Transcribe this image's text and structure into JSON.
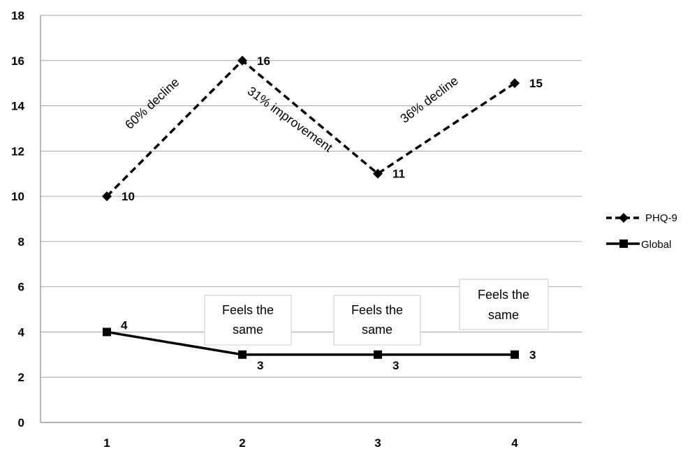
{
  "chart_data": {
    "type": "line",
    "categories": [
      "1",
      "2",
      "3",
      "4"
    ],
    "y_ticks": [
      "0",
      "2",
      "4",
      "6",
      "8",
      "10",
      "12",
      "14",
      "16",
      "18"
    ],
    "ylim": [
      0,
      18
    ],
    "grid": true,
    "legend_position": "right",
    "series": [
      {
        "name": "PHQ-9",
        "values": [
          10,
          16,
          11,
          15
        ],
        "labels": [
          "10",
          "16",
          "11",
          "15"
        ],
        "style": "dashed",
        "marker": "diamond",
        "color": "#000000"
      },
      {
        "name": "Global",
        "values": [
          4,
          3,
          3,
          3
        ],
        "labels": [
          "4",
          "3",
          "3",
          "3"
        ],
        "style": "solid",
        "marker": "square",
        "color": "#000000"
      }
    ],
    "annotations": [
      "60% decline",
      "31% improvement",
      "36% decline"
    ],
    "text_boxes": [
      {
        "line1": "Feels the",
        "line2": "same"
      },
      {
        "line1": "Feels the",
        "line2": "same"
      },
      {
        "line1": "Feels the",
        "line2": "same"
      }
    ]
  }
}
